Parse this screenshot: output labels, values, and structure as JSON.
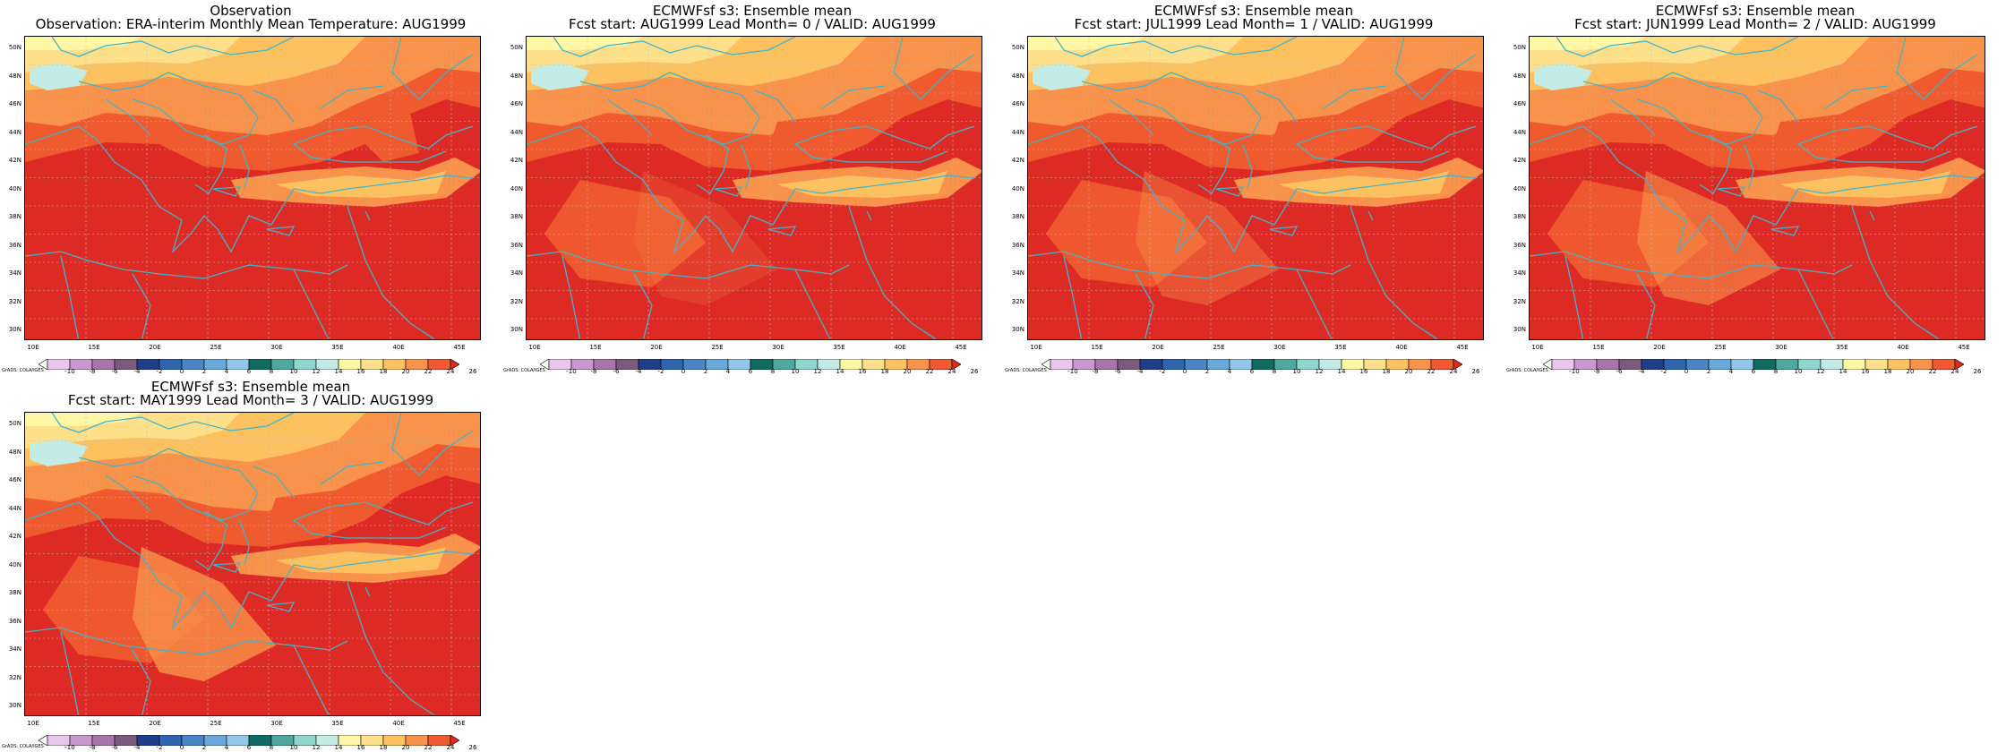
{
  "panels": [
    {
      "title_line1": "Observation",
      "title_line2": "Observation: ERA-interim Monthly Mean Temperature: AUG1999"
    },
    {
      "title_line1": "ECMWFsf s3: Ensemble mean",
      "title_line2": "Fcst start: AUG1999  Lead Month= 0 / VALID: AUG1999"
    },
    {
      "title_line1": "ECMWFsf s3: Ensemble mean",
      "title_line2": "Fcst start: JUL1999  Lead Month= 1 / VALID: AUG1999"
    },
    {
      "title_line1": "ECMWFsf s3: Ensemble mean",
      "title_line2": "Fcst start: JUN1999  Lead Month= 2 / VALID: AUG1999"
    },
    {
      "title_line1": "ECMWFsf s3: Ensemble mean",
      "title_line2": "Fcst start: MAY1999  Lead Month= 3 / VALID: AUG1999"
    }
  ],
  "lat_labels": [
    "50N",
    "48N",
    "46N",
    "44N",
    "42N",
    "40N",
    "38N",
    "36N",
    "34N",
    "32N",
    "30N"
  ],
  "lon_labels": [
    "10E",
    "15E",
    "20E",
    "25E",
    "30E",
    "35E",
    "40E",
    "45E"
  ],
  "colorbar": {
    "labels": [
      "-10",
      "-8",
      "-6",
      "-4",
      "-2",
      "0",
      "2",
      "4",
      "6",
      "8",
      "10",
      "12",
      "14",
      "16",
      "18",
      "20",
      "22",
      "24",
      "26"
    ],
    "colors": [
      "#ffffff",
      "#e9c6ea",
      "#c996cd",
      "#a874ab",
      "#7c5a7e",
      "#1f3f8c",
      "#2e64b0",
      "#4a86c6",
      "#6aa8dc",
      "#93c7ea",
      "#0f6b63",
      "#4ea89f",
      "#8fd6cc",
      "#c3ece6",
      "#fff7a6",
      "#fee08b",
      "#fdc25f",
      "#f9924a",
      "#ef5a2f",
      "#de2a24"
    ]
  },
  "credit": "GrADS: COLA/IGES"
}
